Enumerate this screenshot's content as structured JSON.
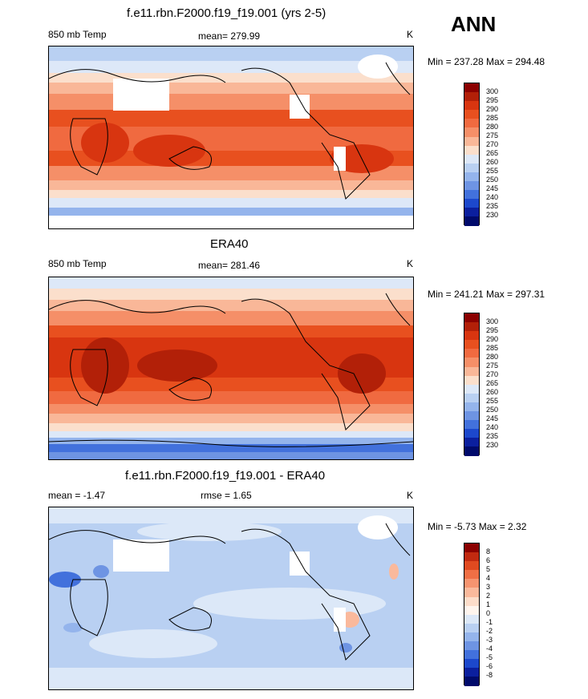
{
  "season": "ANN",
  "panels": [
    {
      "title": "f.e11.rbn.F2000.f19_f19.001 (yrs 2-5)",
      "left_label": "850 mb Temp",
      "center_label": "mean= 279.99",
      "units": "K",
      "minmax": "Min = 237.28 Max = 294.48",
      "colorbar": [
        "300",
        "295",
        "290",
        "285",
        "280",
        "275",
        "270",
        "265",
        "260",
        "255",
        "250",
        "245",
        "240",
        "235",
        "230"
      ]
    },
    {
      "title": "ERA40",
      "left_label": "850 mb Temp",
      "center_label": "mean= 281.46",
      "units": "K",
      "minmax": "Min = 241.21 Max = 297.31",
      "colorbar": [
        "300",
        "295",
        "290",
        "285",
        "280",
        "275",
        "270",
        "265",
        "260",
        "255",
        "250",
        "245",
        "240",
        "235",
        "230"
      ]
    },
    {
      "title": "f.e11.rbn.F2000.f19_f19.001 - ERA40",
      "left_label": "mean =  -1.47",
      "center_label": "rmse =   1.65",
      "units": "K",
      "minmax": "Min =  -5.73 Max =   2.32",
      "colorbar": [
        "8",
        "6",
        "5",
        "4",
        "3",
        "2",
        "1",
        "0",
        "-1",
        "-2",
        "-3",
        "-4",
        "-5",
        "-6",
        "-8"
      ]
    }
  ],
  "colors": {
    "abs_scale": [
      "#8b0000",
      "#b22008",
      "#d83510",
      "#e8501f",
      "#f06a40",
      "#f58f68",
      "#f9b798",
      "#fbdfcc",
      "#dde8f8",
      "#b9d0f2",
      "#94b4ec",
      "#6e94e3",
      "#4271dc",
      "#1c48cc",
      "#0b1f9e",
      "#000a6b"
    ],
    "diff_scale": [
      "#8b0000",
      "#c12a10",
      "#e04a20",
      "#f06f45",
      "#f69470",
      "#fab99c",
      "#fdddca",
      "#fff5ee",
      "#dce8f8",
      "#b9d0f2",
      "#94b4ec",
      "#6e94e3",
      "#4271dc",
      "#1c48cc",
      "#0b1f9e",
      "#000a6b"
    ],
    "missing": "#ffffff"
  }
}
